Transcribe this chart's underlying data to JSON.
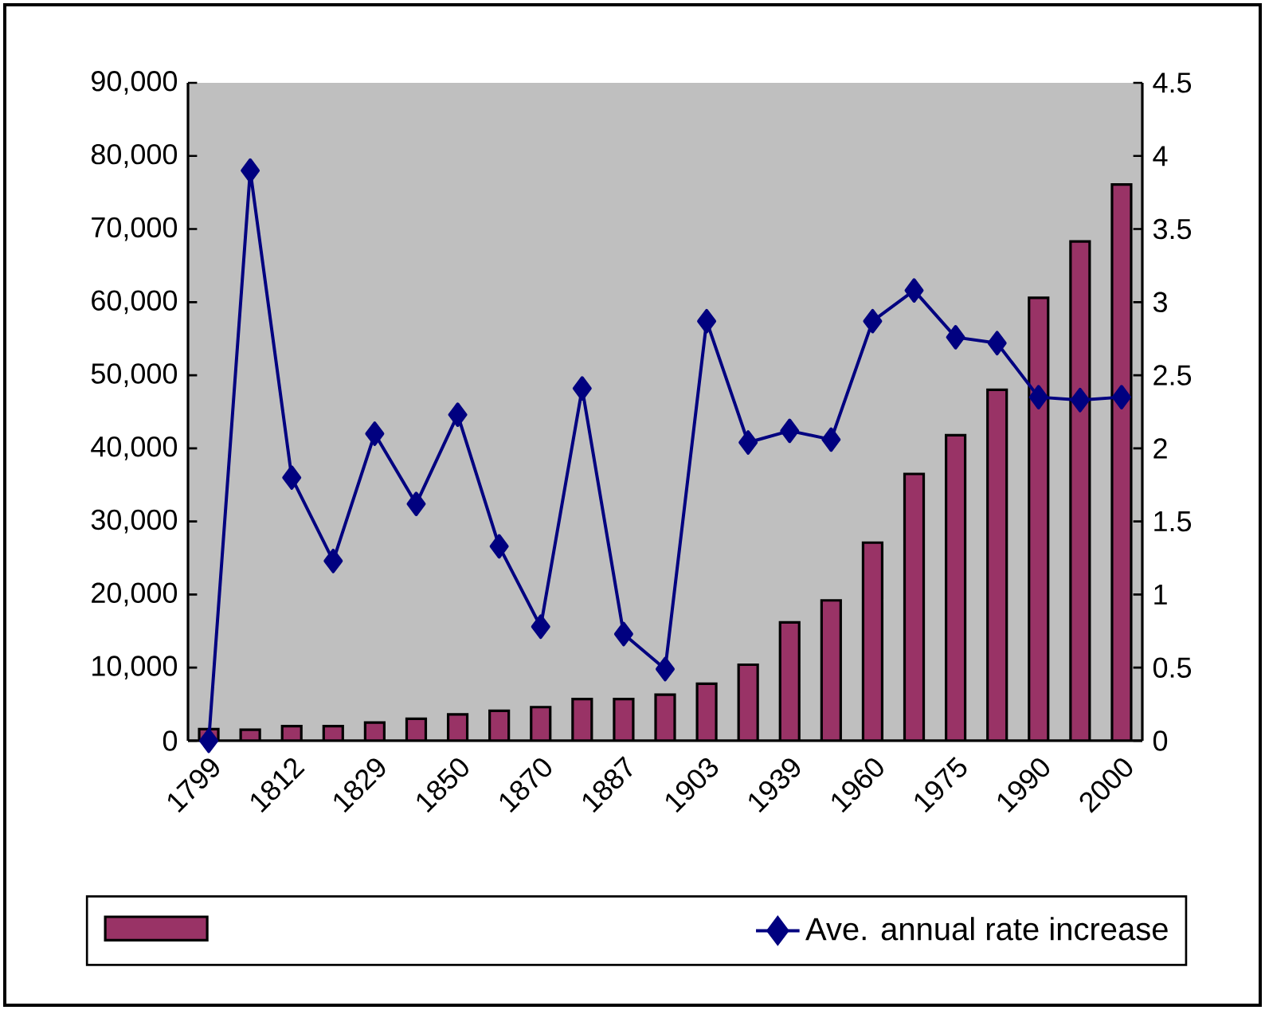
{
  "chart_data": {
    "type": "bar",
    "categories": [
      "1799",
      null,
      "1812",
      null,
      "1829",
      null,
      "1850",
      null,
      "1870",
      null,
      "1887",
      null,
      "1903",
      null,
      "1939",
      null,
      "1960",
      null,
      "1975",
      null,
      "1990",
      null,
      "2000"
    ],
    "series": [
      {
        "color": "#993366",
        "values": [
          1600,
          1500,
          2000,
          2000,
          2500,
          3000,
          3600,
          4100,
          4600,
          5700,
          5700,
          6300,
          7800,
          10400,
          16200,
          19200,
          27100,
          36500,
          41800,
          48000,
          60600,
          68300,
          76100
        ]
      },
      {
        "name": "Ave. annual rate increase",
        "type": "line",
        "axis": "y2",
        "marker": "diamond",
        "color": "#000080",
        "values": [
          0,
          3.9,
          1.8,
          1.23,
          2.1,
          1.62,
          2.23,
          1.33,
          0.78,
          2.41,
          0.73,
          0.49,
          2.87,
          2.04,
          2.12,
          2.06,
          2.87,
          3.08,
          2.76,
          2.72,
          2.35,
          2.33,
          2.35
        ]
      }
    ],
    "ylim": [
      0,
      90000
    ],
    "yticks": [
      {
        "value": 0,
        "label": "0"
      },
      {
        "value": 10000,
        "label": "10,000"
      },
      {
        "value": 20000,
        "label": "20,000"
      },
      {
        "value": 30000,
        "label": "30,000"
      },
      {
        "value": 40000,
        "label": "40,000"
      },
      {
        "value": 50000,
        "label": "50,000"
      },
      {
        "value": 60000,
        "label": "60,000"
      },
      {
        "value": 70000,
        "label": "70,000"
      },
      {
        "value": 80000,
        "label": "80,000"
      },
      {
        "value": 90000,
        "label": "90,000"
      }
    ],
    "y2lim": [
      0,
      4.5
    ],
    "y2ticks": [
      0,
      0.5,
      1,
      1.5,
      2,
      2.5,
      3,
      3.5,
      4,
      4.5
    ],
    "legend": "bottom",
    "grid": false
  }
}
